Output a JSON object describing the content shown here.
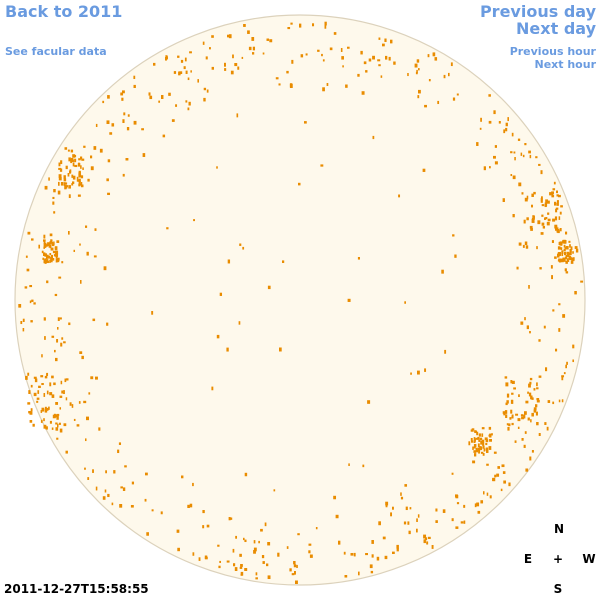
{
  "nav": {
    "back": "Back to 2011",
    "facular": "See facular data",
    "prev_day": "Previous day",
    "next_day": "Next day",
    "prev_hour": "Previous hour",
    "next_hour": "Next hour"
  },
  "timestamp": "2011-12-27T15:58:55",
  "compass": {
    "north": "N",
    "east": "E",
    "center": "+",
    "west": "W",
    "south": "S"
  }
}
